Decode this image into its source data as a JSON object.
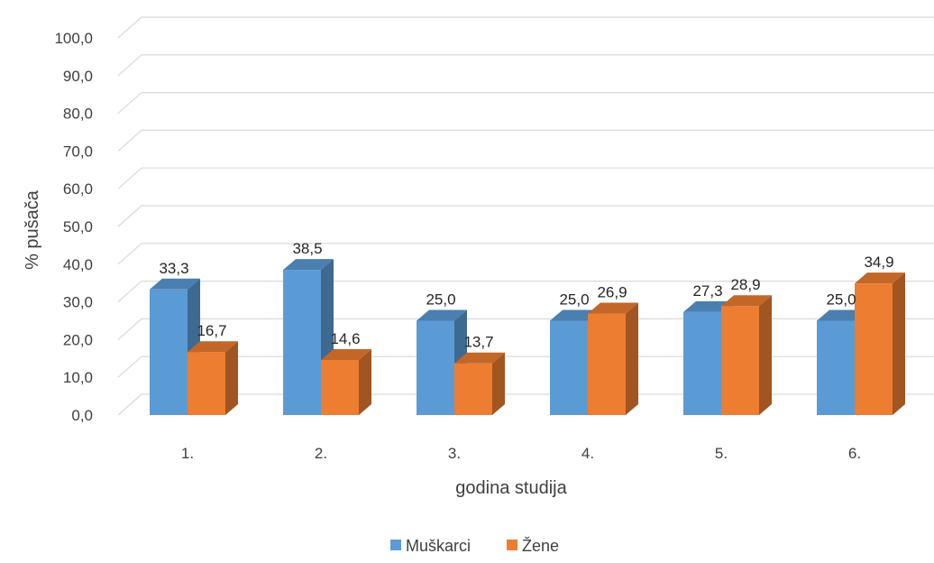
{
  "chart_data": {
    "type": "bar",
    "categories": [
      "1.",
      "2.",
      "3.",
      "4.",
      "5.",
      "6."
    ],
    "series": [
      {
        "name": "Muškarci",
        "values": [
          33.3,
          38.5,
          25.0,
          25.0,
          27.3,
          25.0
        ],
        "labels": [
          "33,3",
          "38,5",
          "25,0",
          "25,0",
          "27,3",
          "25,0"
        ],
        "color": "#5B9BD5"
      },
      {
        "name": "Žene",
        "values": [
          16.7,
          14.6,
          13.7,
          26.9,
          28.9,
          34.9
        ],
        "labels": [
          "16,7",
          "14,6",
          "13,7",
          "26,9",
          "28,9",
          "34,9"
        ],
        "color": "#ED7D31"
      }
    ],
    "yticks": [
      "0,0",
      "10,0",
      "20,0",
      "30,0",
      "40,0",
      "50,0",
      "60,0",
      "70,0",
      "80,0",
      "90,0",
      "100,0"
    ],
    "ylim": [
      0,
      100
    ],
    "xlabel": "godina studija",
    "ylabel": "% pušača",
    "grid": true,
    "legend": "bottom",
    "three_d": true
  }
}
